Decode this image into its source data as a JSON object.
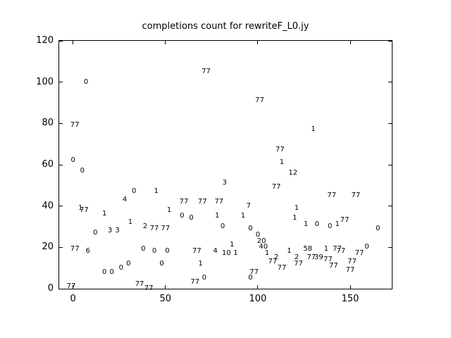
{
  "chart_data": {
    "type": "scatter",
    "title": "completions count for rewriteF_L0.jy",
    "xlabel": "",
    "ylabel": "",
    "xlim": [
      -7.5,
      172.5
    ],
    "ylim": [
      0,
      120
    ],
    "x_ticks": [
      0,
      50,
      100,
      150
    ],
    "y_ticks": [
      0,
      20,
      40,
      60,
      80,
      100,
      120
    ],
    "grid": false,
    "legend": null,
    "marker_style": "text-label",
    "marker_color": "#000000",
    "points": [
      {
        "x": -1,
        "y": 1,
        "label": "77"
      },
      {
        "x": 0,
        "y": 62,
        "label": "0"
      },
      {
        "x": 1,
        "y": 79,
        "label": "77"
      },
      {
        "x": 1,
        "y": 19,
        "label": "77"
      },
      {
        "x": 4,
        "y": 39,
        "label": "1"
      },
      {
        "x": 5,
        "y": 57,
        "label": "0"
      },
      {
        "x": 6,
        "y": 38,
        "label": "77"
      },
      {
        "x": 7,
        "y": 100,
        "label": "0"
      },
      {
        "x": 8,
        "y": 18,
        "label": "6"
      },
      {
        "x": 12,
        "y": 27,
        "label": "0"
      },
      {
        "x": 17,
        "y": 36,
        "label": "1"
      },
      {
        "x": 17,
        "y": 8,
        "label": "0"
      },
      {
        "x": 20,
        "y": 28,
        "label": "3"
      },
      {
        "x": 21,
        "y": 8,
        "label": "0"
      },
      {
        "x": 24,
        "y": 28,
        "label": "3"
      },
      {
        "x": 26,
        "y": 10,
        "label": "0"
      },
      {
        "x": 28,
        "y": 43,
        "label": "4"
      },
      {
        "x": 30,
        "y": 12,
        "label": "0"
      },
      {
        "x": 31,
        "y": 32,
        "label": "1"
      },
      {
        "x": 33,
        "y": 47,
        "label": "0"
      },
      {
        "x": 36,
        "y": 2,
        "label": "77"
      },
      {
        "x": 38,
        "y": 19,
        "label": "0"
      },
      {
        "x": 39,
        "y": 30,
        "label": "2"
      },
      {
        "x": 41,
        "y": 0,
        "label": "77"
      },
      {
        "x": 44,
        "y": 29,
        "label": "77"
      },
      {
        "x": 44,
        "y": 18,
        "label": "0"
      },
      {
        "x": 45,
        "y": 47,
        "label": "1"
      },
      {
        "x": 48,
        "y": 12,
        "label": "0"
      },
      {
        "x": 50,
        "y": 29,
        "label": "77"
      },
      {
        "x": 51,
        "y": 18,
        "label": "0"
      },
      {
        "x": 52,
        "y": 38,
        "label": "1"
      },
      {
        "x": 59,
        "y": 35,
        "label": "0"
      },
      {
        "x": 60,
        "y": 42,
        "label": "77"
      },
      {
        "x": 64,
        "y": 34,
        "label": "0"
      },
      {
        "x": 66,
        "y": 3,
        "label": "77"
      },
      {
        "x": 67,
        "y": 18,
        "label": "77"
      },
      {
        "x": 69,
        "y": 12,
        "label": "1"
      },
      {
        "x": 70,
        "y": 42,
        "label": "77"
      },
      {
        "x": 71,
        "y": 5,
        "label": "0"
      },
      {
        "x": 72,
        "y": 105,
        "label": "77"
      },
      {
        "x": 77,
        "y": 18,
        "label": "4"
      },
      {
        "x": 78,
        "y": 35,
        "label": "1"
      },
      {
        "x": 79,
        "y": 42,
        "label": "77"
      },
      {
        "x": 81,
        "y": 30,
        "label": "0"
      },
      {
        "x": 82,
        "y": 51,
        "label": "3"
      },
      {
        "x": 83,
        "y": 17,
        "label": "10"
      },
      {
        "x": 86,
        "y": 21,
        "label": "1"
      },
      {
        "x": 88,
        "y": 17,
        "label": "1"
      },
      {
        "x": 92,
        "y": 35,
        "label": "1"
      },
      {
        "x": 95,
        "y": 40,
        "label": "7"
      },
      {
        "x": 96,
        "y": 29,
        "label": "0"
      },
      {
        "x": 96,
        "y": 5,
        "label": "0"
      },
      {
        "x": 98,
        "y": 8,
        "label": "77"
      },
      {
        "x": 100,
        "y": 26,
        "label": "0"
      },
      {
        "x": 101,
        "y": 91,
        "label": "77"
      },
      {
        "x": 102,
        "y": 23,
        "label": "20"
      },
      {
        "x": 103,
        "y": 20,
        "label": "40"
      },
      {
        "x": 105,
        "y": 17,
        "label": "1"
      },
      {
        "x": 108,
        "y": 13,
        "label": "77"
      },
      {
        "x": 110,
        "y": 49,
        "label": "77"
      },
      {
        "x": 110,
        "y": 15,
        "label": "2"
      },
      {
        "x": 112,
        "y": 67,
        "label": "77"
      },
      {
        "x": 113,
        "y": 61,
        "label": "1"
      },
      {
        "x": 113,
        "y": 10,
        "label": "77"
      },
      {
        "x": 117,
        "y": 18,
        "label": "1"
      },
      {
        "x": 119,
        "y": 56,
        "label": "12"
      },
      {
        "x": 120,
        "y": 34,
        "label": "1"
      },
      {
        "x": 121,
        "y": 39,
        "label": "1"
      },
      {
        "x": 121,
        "y": 15,
        "label": "2"
      },
      {
        "x": 122,
        "y": 12,
        "label": "77"
      },
      {
        "x": 126,
        "y": 31,
        "label": "1"
      },
      {
        "x": 127,
        "y": 19,
        "label": "58"
      },
      {
        "x": 129,
        "y": 15,
        "label": "77"
      },
      {
        "x": 130,
        "y": 77,
        "label": "1"
      },
      {
        "x": 132,
        "y": 31,
        "label": "0"
      },
      {
        "x": 133,
        "y": 15,
        "label": "39"
      },
      {
        "x": 137,
        "y": 19,
        "label": "1"
      },
      {
        "x": 138,
        "y": 14,
        "label": "77"
      },
      {
        "x": 139,
        "y": 30,
        "label": "0"
      },
      {
        "x": 140,
        "y": 45,
        "label": "77"
      },
      {
        "x": 141,
        "y": 11,
        "label": "77"
      },
      {
        "x": 143,
        "y": 31,
        "label": "1"
      },
      {
        "x": 143,
        "y": 19,
        "label": "77"
      },
      {
        "x": 145,
        "y": 18,
        "label": "77"
      },
      {
        "x": 147,
        "y": 33,
        "label": "77"
      },
      {
        "x": 150,
        "y": 9,
        "label": "77"
      },
      {
        "x": 151,
        "y": 13,
        "label": "77"
      },
      {
        "x": 153,
        "y": 45,
        "label": "77"
      },
      {
        "x": 155,
        "y": 17,
        "label": "77"
      },
      {
        "x": 159,
        "y": 20,
        "label": "0"
      },
      {
        "x": 165,
        "y": 29,
        "label": "0"
      }
    ]
  }
}
